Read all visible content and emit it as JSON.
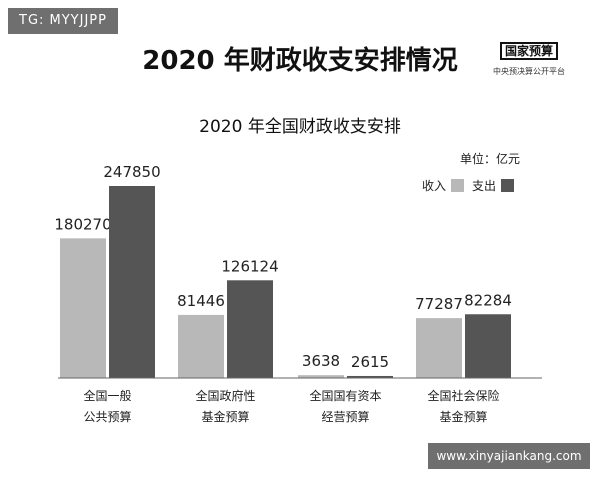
{
  "header": {
    "tag": "TG: MYYJJPP",
    "title": "2020 年财政收支安排情况",
    "source_logo": "国家预算",
    "source_name": "中央预决算公开平台"
  },
  "watermark": "www.xinyajiankang.com",
  "chart_data": {
    "type": "bar",
    "title": "2020 年全国财政收支安排",
    "unit": "单位：亿元",
    "categories": [
      [
        "全国一般",
        "公共预算"
      ],
      [
        "全国政府性",
        "基金预算"
      ],
      [
        "全国国有资本",
        "经营预算"
      ],
      [
        "全国社会保险",
        "基金预算"
      ]
    ],
    "series": [
      {
        "name": "收入",
        "color": "#b8b8b8",
        "values": [
          180270,
          81446,
          3638,
          77287
        ]
      },
      {
        "name": "支出",
        "color": "#555555",
        "values": [
          247850,
          126124,
          2615,
          82284
        ]
      }
    ],
    "ylim": [
      0,
      260000
    ],
    "legend_position": "top-right",
    "grid": false
  }
}
